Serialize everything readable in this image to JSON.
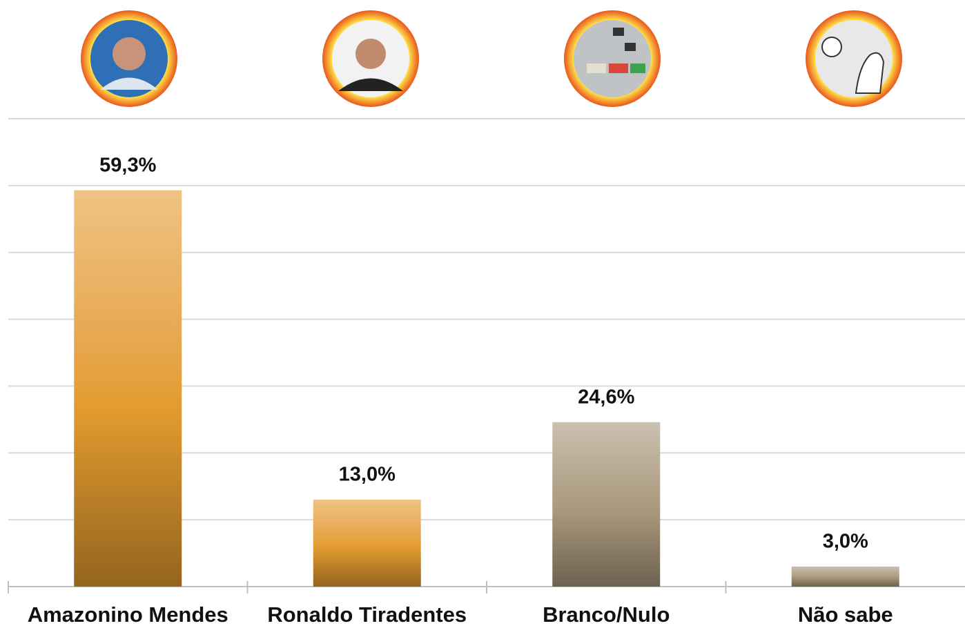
{
  "chart_data": {
    "type": "bar",
    "categories": [
      "Amazonino Mendes",
      "Ronaldo Tiradentes",
      "Branco/Nulo",
      "Não sabe"
    ],
    "values": [
      59.3,
      13.0,
      24.6,
      3.0
    ],
    "value_labels": [
      "59,3%",
      "13,0%",
      "24,6%",
      "3,0%"
    ],
    "colors": [
      "#e39b2f",
      "#e39b2f",
      "#a8977b",
      "#a8977b"
    ],
    "ylim": [
      0,
      70
    ],
    "yticks": [
      0,
      10,
      20,
      30,
      40,
      50,
      60,
      70
    ],
    "grid": true
  }
}
